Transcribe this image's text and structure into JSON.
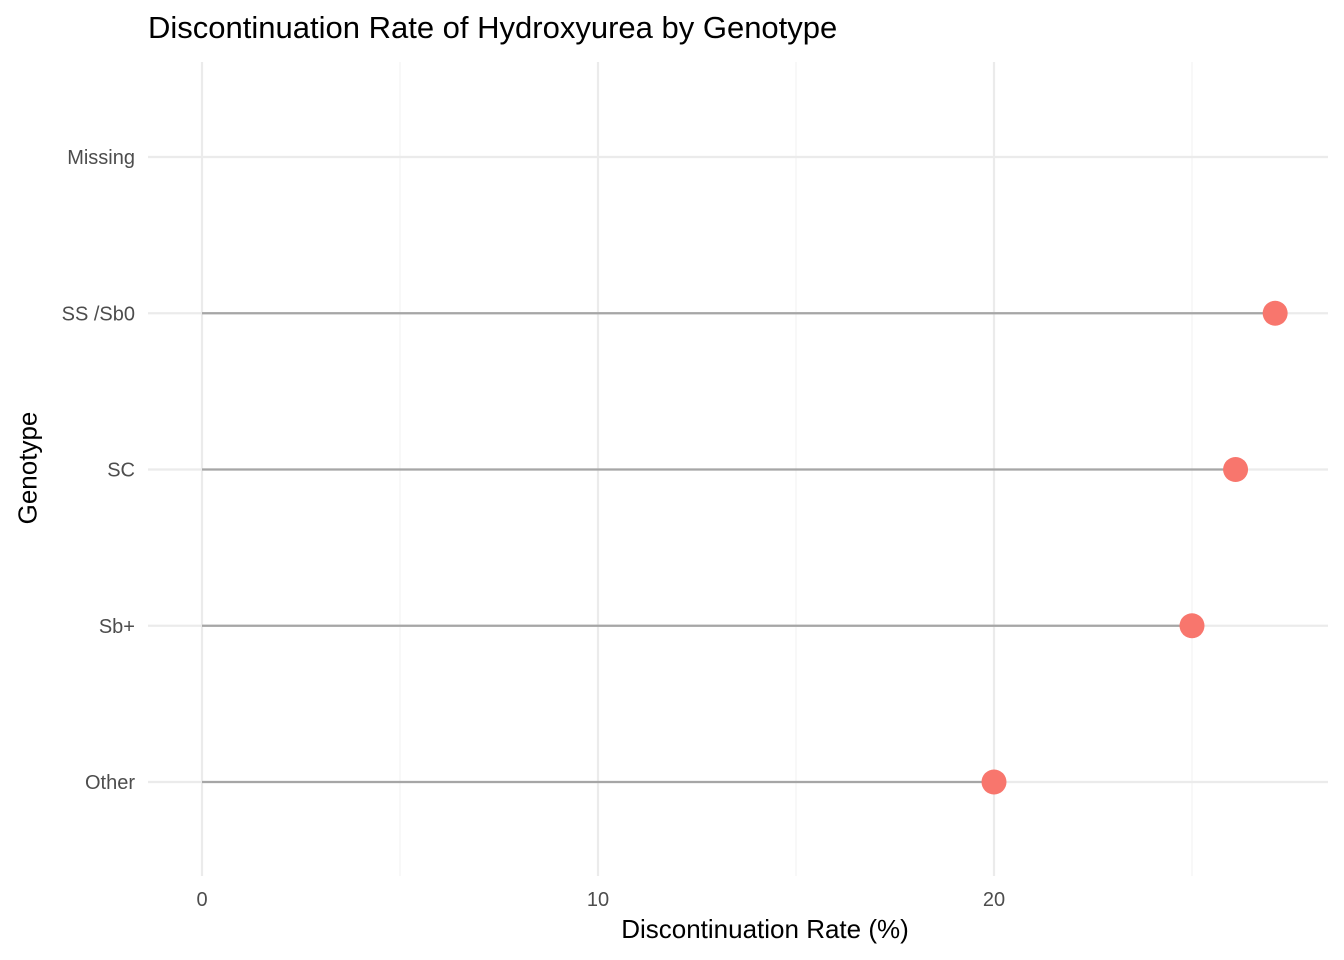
{
  "chart_data": {
    "type": "lollipop",
    "title": "Discontinuation Rate of Hydroxyurea by Genotype",
    "xlabel": "Discontinuation Rate (%)",
    "ylabel": "Genotype",
    "categories": [
      "Other",
      "Sb+",
      "SC",
      "SS /Sb0",
      "Missing"
    ],
    "values": [
      20,
      25,
      26.1,
      27.1,
      null
    ],
    "xlim": [
      -1.4,
      27.1
    ],
    "x_ticks": [
      0,
      10,
      20
    ],
    "x_minor_ticks": [
      5,
      15,
      25
    ],
    "grid": true,
    "legend": "none",
    "colors": {
      "point": "#F8766D",
      "stem": "#A6A6A6",
      "grid_major": "#EBEBEB",
      "grid_minor": "#F5F5F5"
    }
  }
}
